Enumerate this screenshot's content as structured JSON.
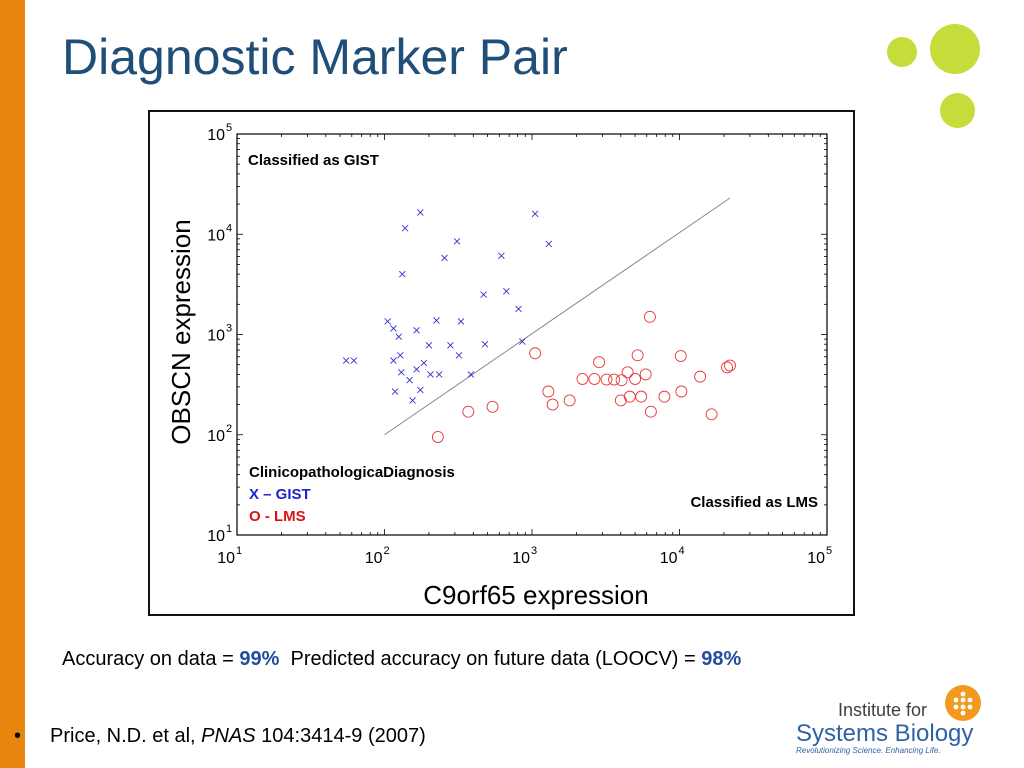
{
  "slide": {
    "title": "Diagnostic Marker Pair",
    "accent_color": "#e8870e",
    "title_color": "#1f4e79",
    "deco_color": "#c5dc3a"
  },
  "accuracy": {
    "prefix": "Accuracy on data = ",
    "value": "99%",
    "middle": "Predicted accuracy on future data (LOOCV) = ",
    "loocv_value": "98%"
  },
  "citation": {
    "bullet": "•",
    "authors": "Price, N.D. et al, ",
    "journal": "PNAS",
    "details": " 104:3414-9 (2007)"
  },
  "logo": {
    "line1": "Institute for",
    "line2": "Systems Biology",
    "tagline": "Revolutionizing Science. Enhancing Life.",
    "icon": "dots-circle-icon"
  },
  "chart_data": {
    "type": "scatter",
    "xlabel": "C9orf65 expression",
    "ylabel": "OBSCN expression",
    "xscale": "log",
    "yscale": "log",
    "xlim": [
      10,
      100000
    ],
    "ylim": [
      10,
      100000
    ],
    "tick_base": "10",
    "x_ticks": [
      "1",
      "2",
      "3",
      "4",
      "5"
    ],
    "y_ticks": [
      "1",
      "2",
      "3",
      "4",
      "5"
    ],
    "annotations": {
      "top_region": "Classified as GIST",
      "bottom_region": "Classified as LMS",
      "legend_title": "ClinicopathologicaDiagnosis",
      "legend_gist": "X – GIST",
      "legend_lms": "O - LMS"
    },
    "legend_placement": "bottom-left",
    "decision_boundary": {
      "x": [
        100,
        22000
      ],
      "y": [
        100,
        23000
      ]
    },
    "series": [
      {
        "name": "X – GIST",
        "marker": "x",
        "color": "#3333cc",
        "points": [
          [
            55,
            550
          ],
          [
            62,
            550
          ],
          [
            105,
            1350
          ],
          [
            115,
            550
          ],
          [
            115,
            1150
          ],
          [
            118,
            270
          ],
          [
            125,
            950
          ],
          [
            128,
            620
          ],
          [
            130,
            420
          ],
          [
            132,
            4000
          ],
          [
            138,
            11500
          ],
          [
            148,
            350
          ],
          [
            155,
            220
          ],
          [
            165,
            450
          ],
          [
            165,
            1100
          ],
          [
            175,
            16500
          ],
          [
            175,
            280
          ],
          [
            185,
            520
          ],
          [
            200,
            780
          ],
          [
            205,
            400
          ],
          [
            225,
            1380
          ],
          [
            235,
            400
          ],
          [
            255,
            5800
          ],
          [
            280,
            780
          ],
          [
            310,
            8500
          ],
          [
            320,
            620
          ],
          [
            330,
            1350
          ],
          [
            385,
            400
          ],
          [
            470,
            2500
          ],
          [
            480,
            800
          ],
          [
            620,
            6100
          ],
          [
            670,
            2700
          ],
          [
            810,
            1800
          ],
          [
            860,
            850
          ],
          [
            1050,
            16000
          ],
          [
            1300,
            8000
          ]
        ]
      },
      {
        "name": "O - LMS",
        "marker": "o",
        "color": "#e83a3a",
        "points": [
          [
            230,
            95
          ],
          [
            370,
            170
          ],
          [
            540,
            190
          ],
          [
            1050,
            650
          ],
          [
            1290,
            270
          ],
          [
            1380,
            200
          ],
          [
            1800,
            220
          ],
          [
            2200,
            360
          ],
          [
            2650,
            360
          ],
          [
            2850,
            530
          ],
          [
            3200,
            355
          ],
          [
            3600,
            355
          ],
          [
            4000,
            220
          ],
          [
            4050,
            350
          ],
          [
            4450,
            420
          ],
          [
            4600,
            240
          ],
          [
            5000,
            360
          ],
          [
            5200,
            620
          ],
          [
            5500,
            240
          ],
          [
            5900,
            400
          ],
          [
            6300,
            1500
          ],
          [
            6400,
            170
          ],
          [
            7900,
            240
          ],
          [
            10200,
            610
          ],
          [
            10300,
            270
          ],
          [
            13800,
            380
          ],
          [
            16500,
            160
          ],
          [
            21000,
            470
          ],
          [
            22000,
            490
          ]
        ]
      }
    ]
  }
}
